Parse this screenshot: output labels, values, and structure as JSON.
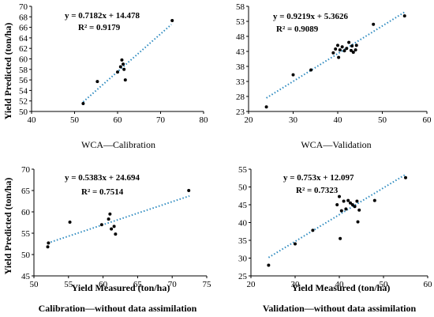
{
  "chart_data": [
    {
      "type": "scatter",
      "caption": "WCA—Calibration",
      "ylabel": "Yield Predicted (ton/ha)",
      "xlabel": "",
      "xlim": [
        40,
        80
      ],
      "ylim": [
        50,
        70
      ],
      "xticks": [
        40,
        50,
        60,
        70,
        80
      ],
      "yticks": [
        50,
        52,
        54,
        56,
        58,
        60,
        62,
        64,
        66,
        68,
        70
      ],
      "equation": "y = 0.7182x + 14.478",
      "r2": "R² = 0.9179",
      "trend": {
        "slope": 0.7182,
        "intercept": 14.478,
        "x_range": [
          52,
          72.5
        ]
      },
      "points": [
        {
          "x": 52,
          "y": 51.5
        },
        {
          "x": 55.3,
          "y": 55.7
        },
        {
          "x": 60,
          "y": 57.5
        },
        {
          "x": 60.7,
          "y": 58.5
        },
        {
          "x": 61,
          "y": 59.8
        },
        {
          "x": 61.3,
          "y": 59
        },
        {
          "x": 61.5,
          "y": 58
        },
        {
          "x": 61.8,
          "y": 56
        },
        {
          "x": 72.7,
          "y": 67.3
        }
      ]
    },
    {
      "type": "scatter",
      "caption": "WCA—Validation",
      "ylabel": "",
      "xlabel": "",
      "xlim": [
        20,
        60
      ],
      "ylim": [
        23,
        58
      ],
      "xticks": [
        20,
        30,
        40,
        50,
        60
      ],
      "yticks": [
        23,
        28,
        33,
        38,
        43,
        48,
        53,
        58
      ],
      "equation": "y = 0.9219x + 5.3626",
      "r2": "R² = 0.9089",
      "trend": {
        "slope": 0.9219,
        "intercept": 5.3626,
        "x_range": [
          24,
          55
        ]
      },
      "points": [
        {
          "x": 24,
          "y": 24.5
        },
        {
          "x": 30,
          "y": 35.2
        },
        {
          "x": 34,
          "y": 36.8
        },
        {
          "x": 39,
          "y": 42.5
        },
        {
          "x": 39.5,
          "y": 43.8
        },
        {
          "x": 40,
          "y": 45
        },
        {
          "x": 40.2,
          "y": 41
        },
        {
          "x": 40.5,
          "y": 43.5
        },
        {
          "x": 41,
          "y": 44.5
        },
        {
          "x": 41.5,
          "y": 43.2
        },
        {
          "x": 42,
          "y": 44
        },
        {
          "x": 42.5,
          "y": 46
        },
        {
          "x": 43,
          "y": 43.3
        },
        {
          "x": 43.2,
          "y": 44.8
        },
        {
          "x": 43.5,
          "y": 42.7
        },
        {
          "x": 44,
          "y": 43.5
        },
        {
          "x": 44.2,
          "y": 45
        },
        {
          "x": 48,
          "y": 52
        },
        {
          "x": 55,
          "y": 54.8
        }
      ]
    },
    {
      "type": "scatter",
      "caption": "Calibration—without data assimilation",
      "ylabel": "Yield Predicted (ton/ha)",
      "xlabel": "Yield Measured (ton/ha)",
      "xlim": [
        50,
        75
      ],
      "ylim": [
        45,
        70
      ],
      "xticks": [
        50,
        55,
        60,
        65,
        70,
        75
      ],
      "yticks": [
        45,
        50,
        55,
        60,
        65,
        70
      ],
      "equation": "y = 0.5383x + 24.694",
      "r2": "R² = 0.7514",
      "trend": {
        "slope": 0.5383,
        "intercept": 24.694,
        "x_range": [
          52,
          72.5
        ]
      },
      "points": [
        {
          "x": 52,
          "y": 51.8
        },
        {
          "x": 52.1,
          "y": 52.7
        },
        {
          "x": 55.2,
          "y": 57.6
        },
        {
          "x": 59.8,
          "y": 57
        },
        {
          "x": 60.8,
          "y": 58.3
        },
        {
          "x": 61,
          "y": 59.5
        },
        {
          "x": 61.2,
          "y": 56
        },
        {
          "x": 61.6,
          "y": 56.6
        },
        {
          "x": 61.8,
          "y": 54.8
        },
        {
          "x": 72.4,
          "y": 65
        }
      ]
    },
    {
      "type": "scatter",
      "caption": "Validation—without data assimilation",
      "ylabel": "",
      "xlabel": "Yield Measured (ton/ha)",
      "xlim": [
        20,
        60
      ],
      "ylim": [
        25,
        55
      ],
      "xticks": [
        20,
        30,
        40,
        50,
        60
      ],
      "yticks": [
        25,
        30,
        35,
        40,
        45,
        50,
        55
      ],
      "equation": "y = 0.753x + 12.097",
      "r2": "R² = 0.7323",
      "trend": {
        "slope": 0.753,
        "intercept": 12.097,
        "x_range": [
          24,
          55
        ]
      },
      "points": [
        {
          "x": 24,
          "y": 28
        },
        {
          "x": 30,
          "y": 34
        },
        {
          "x": 34,
          "y": 37.8
        },
        {
          "x": 39.5,
          "y": 45
        },
        {
          "x": 40,
          "y": 47.3
        },
        {
          "x": 40.2,
          "y": 35.5
        },
        {
          "x": 40.5,
          "y": 43.3
        },
        {
          "x": 41,
          "y": 46
        },
        {
          "x": 41.5,
          "y": 43.8
        },
        {
          "x": 42,
          "y": 46.2
        },
        {
          "x": 42.5,
          "y": 45.5
        },
        {
          "x": 43,
          "y": 45
        },
        {
          "x": 43.5,
          "y": 44.5
        },
        {
          "x": 44,
          "y": 46
        },
        {
          "x": 44.2,
          "y": 40.2
        },
        {
          "x": 44.5,
          "y": 43.5
        },
        {
          "x": 48,
          "y": 46.2
        },
        {
          "x": 55,
          "y": 52.6
        }
      ]
    }
  ]
}
